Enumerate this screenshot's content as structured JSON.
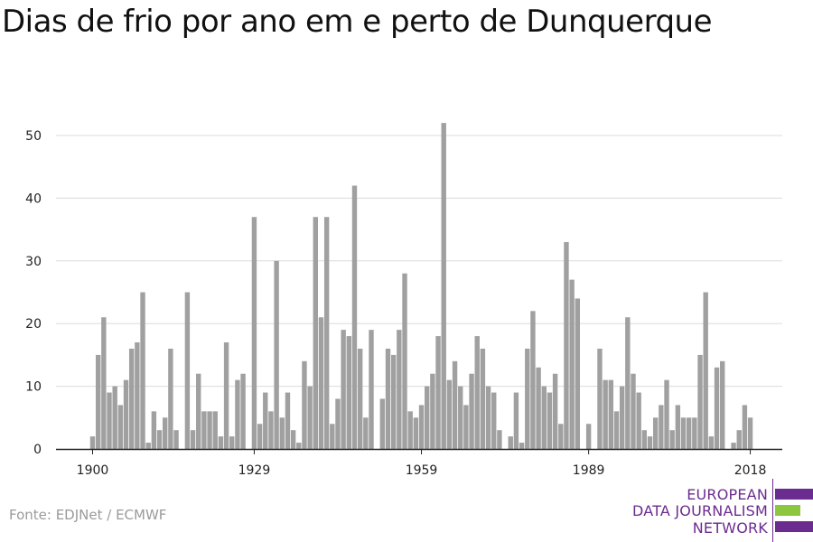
{
  "title": "Dias de frio por ano em e perto de Dunquerque",
  "source": "Fonte: EDJNet / ECMWF",
  "logo": {
    "line1": "EUROPEAN",
    "line2": "DATA JOURNALISM",
    "line3": "NETWORK"
  },
  "colors": {
    "bar": "#a0a0a0",
    "grid": "#dcdcdc",
    "axis": "#222222",
    "logo_purple": "#6b2c8f",
    "logo_green": "#8dc63f"
  },
  "chart_data": {
    "type": "bar",
    "title": "Dias de frio por ano em e perto de Dunquerque",
    "xlabel": "",
    "ylabel": "",
    "ylim": [
      0,
      55
    ],
    "yticks": [
      0,
      10,
      20,
      30,
      40,
      50
    ],
    "xticks": [
      1900,
      1929,
      1959,
      1989,
      2018
    ],
    "grid": true,
    "x": [
      1900,
      1901,
      1902,
      1903,
      1904,
      1905,
      1906,
      1907,
      1908,
      1909,
      1910,
      1911,
      1912,
      1913,
      1914,
      1915,
      1916,
      1917,
      1918,
      1919,
      1920,
      1921,
      1922,
      1923,
      1924,
      1925,
      1926,
      1927,
      1928,
      1929,
      1930,
      1931,
      1932,
      1933,
      1934,
      1935,
      1936,
      1937,
      1938,
      1939,
      1940,
      1941,
      1942,
      1943,
      1944,
      1945,
      1946,
      1947,
      1948,
      1949,
      1950,
      1951,
      1952,
      1953,
      1954,
      1955,
      1956,
      1957,
      1958,
      1959,
      1960,
      1961,
      1962,
      1963,
      1964,
      1965,
      1966,
      1967,
      1968,
      1969,
      1970,
      1971,
      1972,
      1973,
      1974,
      1975,
      1976,
      1977,
      1978,
      1979,
      1980,
      1981,
      1982,
      1983,
      1984,
      1985,
      1986,
      1987,
      1988,
      1989,
      1990,
      1991,
      1992,
      1993,
      1994,
      1995,
      1996,
      1997,
      1998,
      1999,
      2000,
      2001,
      2002,
      2003,
      2004,
      2005,
      2006,
      2007,
      2008,
      2009,
      2010,
      2011,
      2012,
      2013,
      2014,
      2015,
      2016,
      2017,
      2018
    ],
    "values": [
      2,
      15,
      21,
      9,
      10,
      7,
      11,
      16,
      17,
      25,
      1,
      6,
      3,
      5,
      16,
      3,
      0,
      25,
      3,
      12,
      6,
      6,
      6,
      2,
      17,
      2,
      11,
      12,
      0,
      37,
      4,
      9,
      6,
      30,
      5,
      9,
      3,
      1,
      14,
      10,
      37,
      21,
      37,
      4,
      8,
      19,
      18,
      42,
      16,
      5,
      19,
      0,
      8,
      16,
      15,
      19,
      28,
      6,
      5,
      7,
      10,
      12,
      18,
      52,
      11,
      14,
      10,
      7,
      12,
      18,
      16,
      10,
      9,
      3,
      0,
      2,
      9,
      1,
      16,
      22,
      13,
      10,
      9,
      12,
      4,
      33,
      27,
      24,
      0,
      4,
      0,
      16,
      11,
      11,
      6,
      10,
      21,
      12,
      9,
      3,
      2,
      5,
      7,
      11,
      3,
      7,
      5,
      5,
      5,
      15,
      25,
      2,
      13,
      14,
      0,
      1,
      3,
      7,
      5
    ]
  }
}
